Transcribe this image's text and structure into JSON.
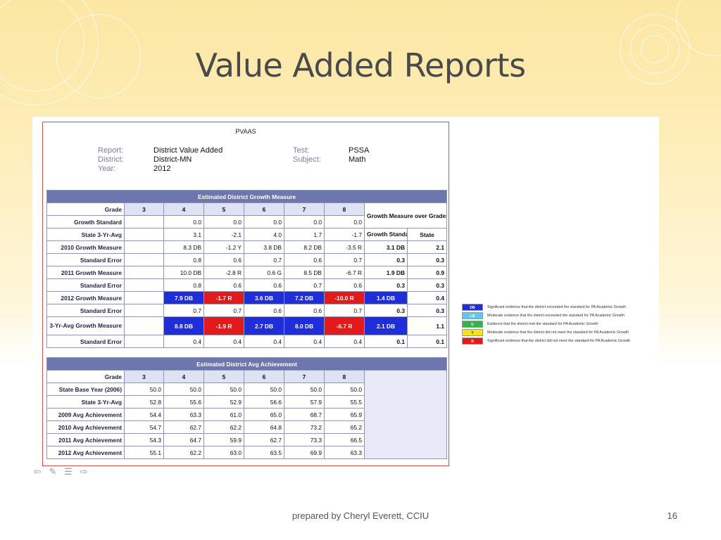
{
  "slide": {
    "title": "Value Added Reports",
    "footer": "prepared by Cheryl Everett, CCIU",
    "page_number": "16"
  },
  "report": {
    "heading": "PVAAS",
    "report_label": "Report:",
    "report_value": "District Value Added",
    "district_label": "District:",
    "district_value": "District-MN",
    "year_label": "Year:",
    "year_value": "2012",
    "test_label": "Test:",
    "test_value": "PSSA",
    "subject_label": "Subject:",
    "subject_value": "Math"
  },
  "growth": {
    "band": "Estimated District Growth Measure",
    "grade_label": "Grade",
    "grades": [
      "3",
      "4",
      "5",
      "6",
      "7",
      "8"
    ],
    "summary_header": "Growth Measure over Grades Relative to",
    "summary_cols": [
      "Growth Standard",
      "State"
    ],
    "rows": [
      {
        "label": "Growth Standard",
        "cells": [
          "",
          "0.0",
          "0.0",
          "0.0",
          "0.0",
          "0.0"
        ]
      },
      {
        "label": "State 3-Yr-Avg",
        "cells": [
          "",
          "3.1",
          "-2.1",
          "4.0",
          "1.7",
          "-1.7"
        ]
      },
      {
        "label": "2010 Growth Measure",
        "cells": [
          "",
          "8.3 DB",
          "-1.2 Y",
          "3.8 DB",
          "8.2 DB",
          "-3.5 R"
        ],
        "summary": [
          "3.1 DB",
          "2.1"
        ]
      },
      {
        "label": "Standard Error",
        "cells": [
          "",
          "0.8",
          "0.6",
          "0.7",
          "0.6",
          "0.7"
        ],
        "summary": [
          "0.3",
          "0.3"
        ]
      },
      {
        "label": "2011 Growth Measure",
        "cells": [
          "",
          "10.0 DB",
          "-2.8 R",
          "0.6 G",
          "8.5 DB",
          "-6.7 R"
        ],
        "summary": [
          "1.9 DB",
          "0.9"
        ]
      },
      {
        "label": "Standard Error",
        "cells": [
          "",
          "0.8",
          "0.6",
          "0.6",
          "0.7",
          "0.6"
        ],
        "summary": [
          "0.3",
          "0.3"
        ]
      },
      {
        "label": "2012 Growth Measure",
        "cells": [
          "",
          "7.9 DB",
          "-1.7 R",
          "3.6 DB",
          "7.2 DB",
          "-10.0 R"
        ],
        "summary": [
          "1.4 DB",
          "0.4"
        ]
      },
      {
        "label": "Standard Error",
        "cells": [
          "",
          "0.7",
          "0.7",
          "0.6",
          "0.6",
          "0.7"
        ],
        "summary": [
          "0.3",
          "0.3"
        ]
      },
      {
        "label": "3-Yr-Avg Growth Measure",
        "cells": [
          "",
          "8.8 DB",
          "-1.9 R",
          "2.7 DB",
          "8.0 DB",
          "-6.7 R"
        ],
        "summary": [
          "2.1 DB",
          "1.1"
        ]
      },
      {
        "label": "Standard Error",
        "cells": [
          "",
          "0.4",
          "0.4",
          "0.4",
          "0.4",
          "0.4"
        ],
        "summary": [
          "0.1",
          "0.1"
        ]
      }
    ]
  },
  "achievement": {
    "band": "Estimated District Avg Achievement",
    "grade_label": "Grade",
    "grades": [
      "3",
      "4",
      "5",
      "6",
      "7",
      "8"
    ],
    "rows": [
      {
        "label": "State Base Year (2006)",
        "cells": [
          "50.0",
          "50.0",
          "50.0",
          "50.0",
          "50.0",
          "50.0"
        ]
      },
      {
        "label": "State 3-Yr-Avg",
        "cells": [
          "52.8",
          "55.6",
          "52.9",
          "56.6",
          "57.9",
          "55.5"
        ]
      },
      {
        "label": "2009 Avg Achievement",
        "cells": [
          "54.4",
          "63.3",
          "61.0",
          "65.0",
          "68.7",
          "65.9"
        ]
      },
      {
        "label": "2010 Avg Achievement",
        "cells": [
          "54.7",
          "62.7",
          "62.2",
          "64.8",
          "73.2",
          "65.2"
        ]
      },
      {
        "label": "2011 Avg Achievement",
        "cells": [
          "54.3",
          "64.7",
          "59.9",
          "62.7",
          "73.3",
          "66.5"
        ]
      },
      {
        "label": "2012 Avg Achievement",
        "cells": [
          "55.1",
          "62.2",
          "63.0",
          "63.5",
          "69.9",
          "63.3"
        ]
      }
    ]
  },
  "legend": [
    {
      "code": "DB",
      "color": "#1f2ed8",
      "text_color": "#ffffff",
      "text": "Significant evidence that the district exceeded the standard for PA Academic Growth"
    },
    {
      "code": "LB",
      "color": "#5fc8e8",
      "text_color": "#ffffff",
      "text": "Moderate evidence that the district exceeded the standard for PA Academic Growth"
    },
    {
      "code": "G",
      "color": "#2fb84a",
      "text_color": "#ffffff",
      "text": "Evidence that the district met the standard for PA Academic Growth"
    },
    {
      "code": "Y",
      "color": "#f3e41c",
      "text_color": "#333333",
      "text": "Moderate evidence that the district did not meet the standard for PA Academic Growth"
    },
    {
      "code": "R",
      "color": "#e21a1a",
      "text_color": "#ffffff",
      "text": "Significant evidence that the district did not meet the standard for PA Academic Growth"
    }
  ],
  "colors": {
    "blue_cell": "#1f2ed8",
    "red_cell": "#e21a1a",
    "header_band": "#6d77ae"
  },
  "highlight": {
    "row_indices": [
      6,
      8
    ],
    "blue_cols": [
      1,
      3,
      4
    ],
    "red_cols": [
      2,
      5
    ]
  },
  "nav_icons": [
    "previous-arrow-icon",
    "pen-icon",
    "menu-icon",
    "next-arrow-icon"
  ]
}
